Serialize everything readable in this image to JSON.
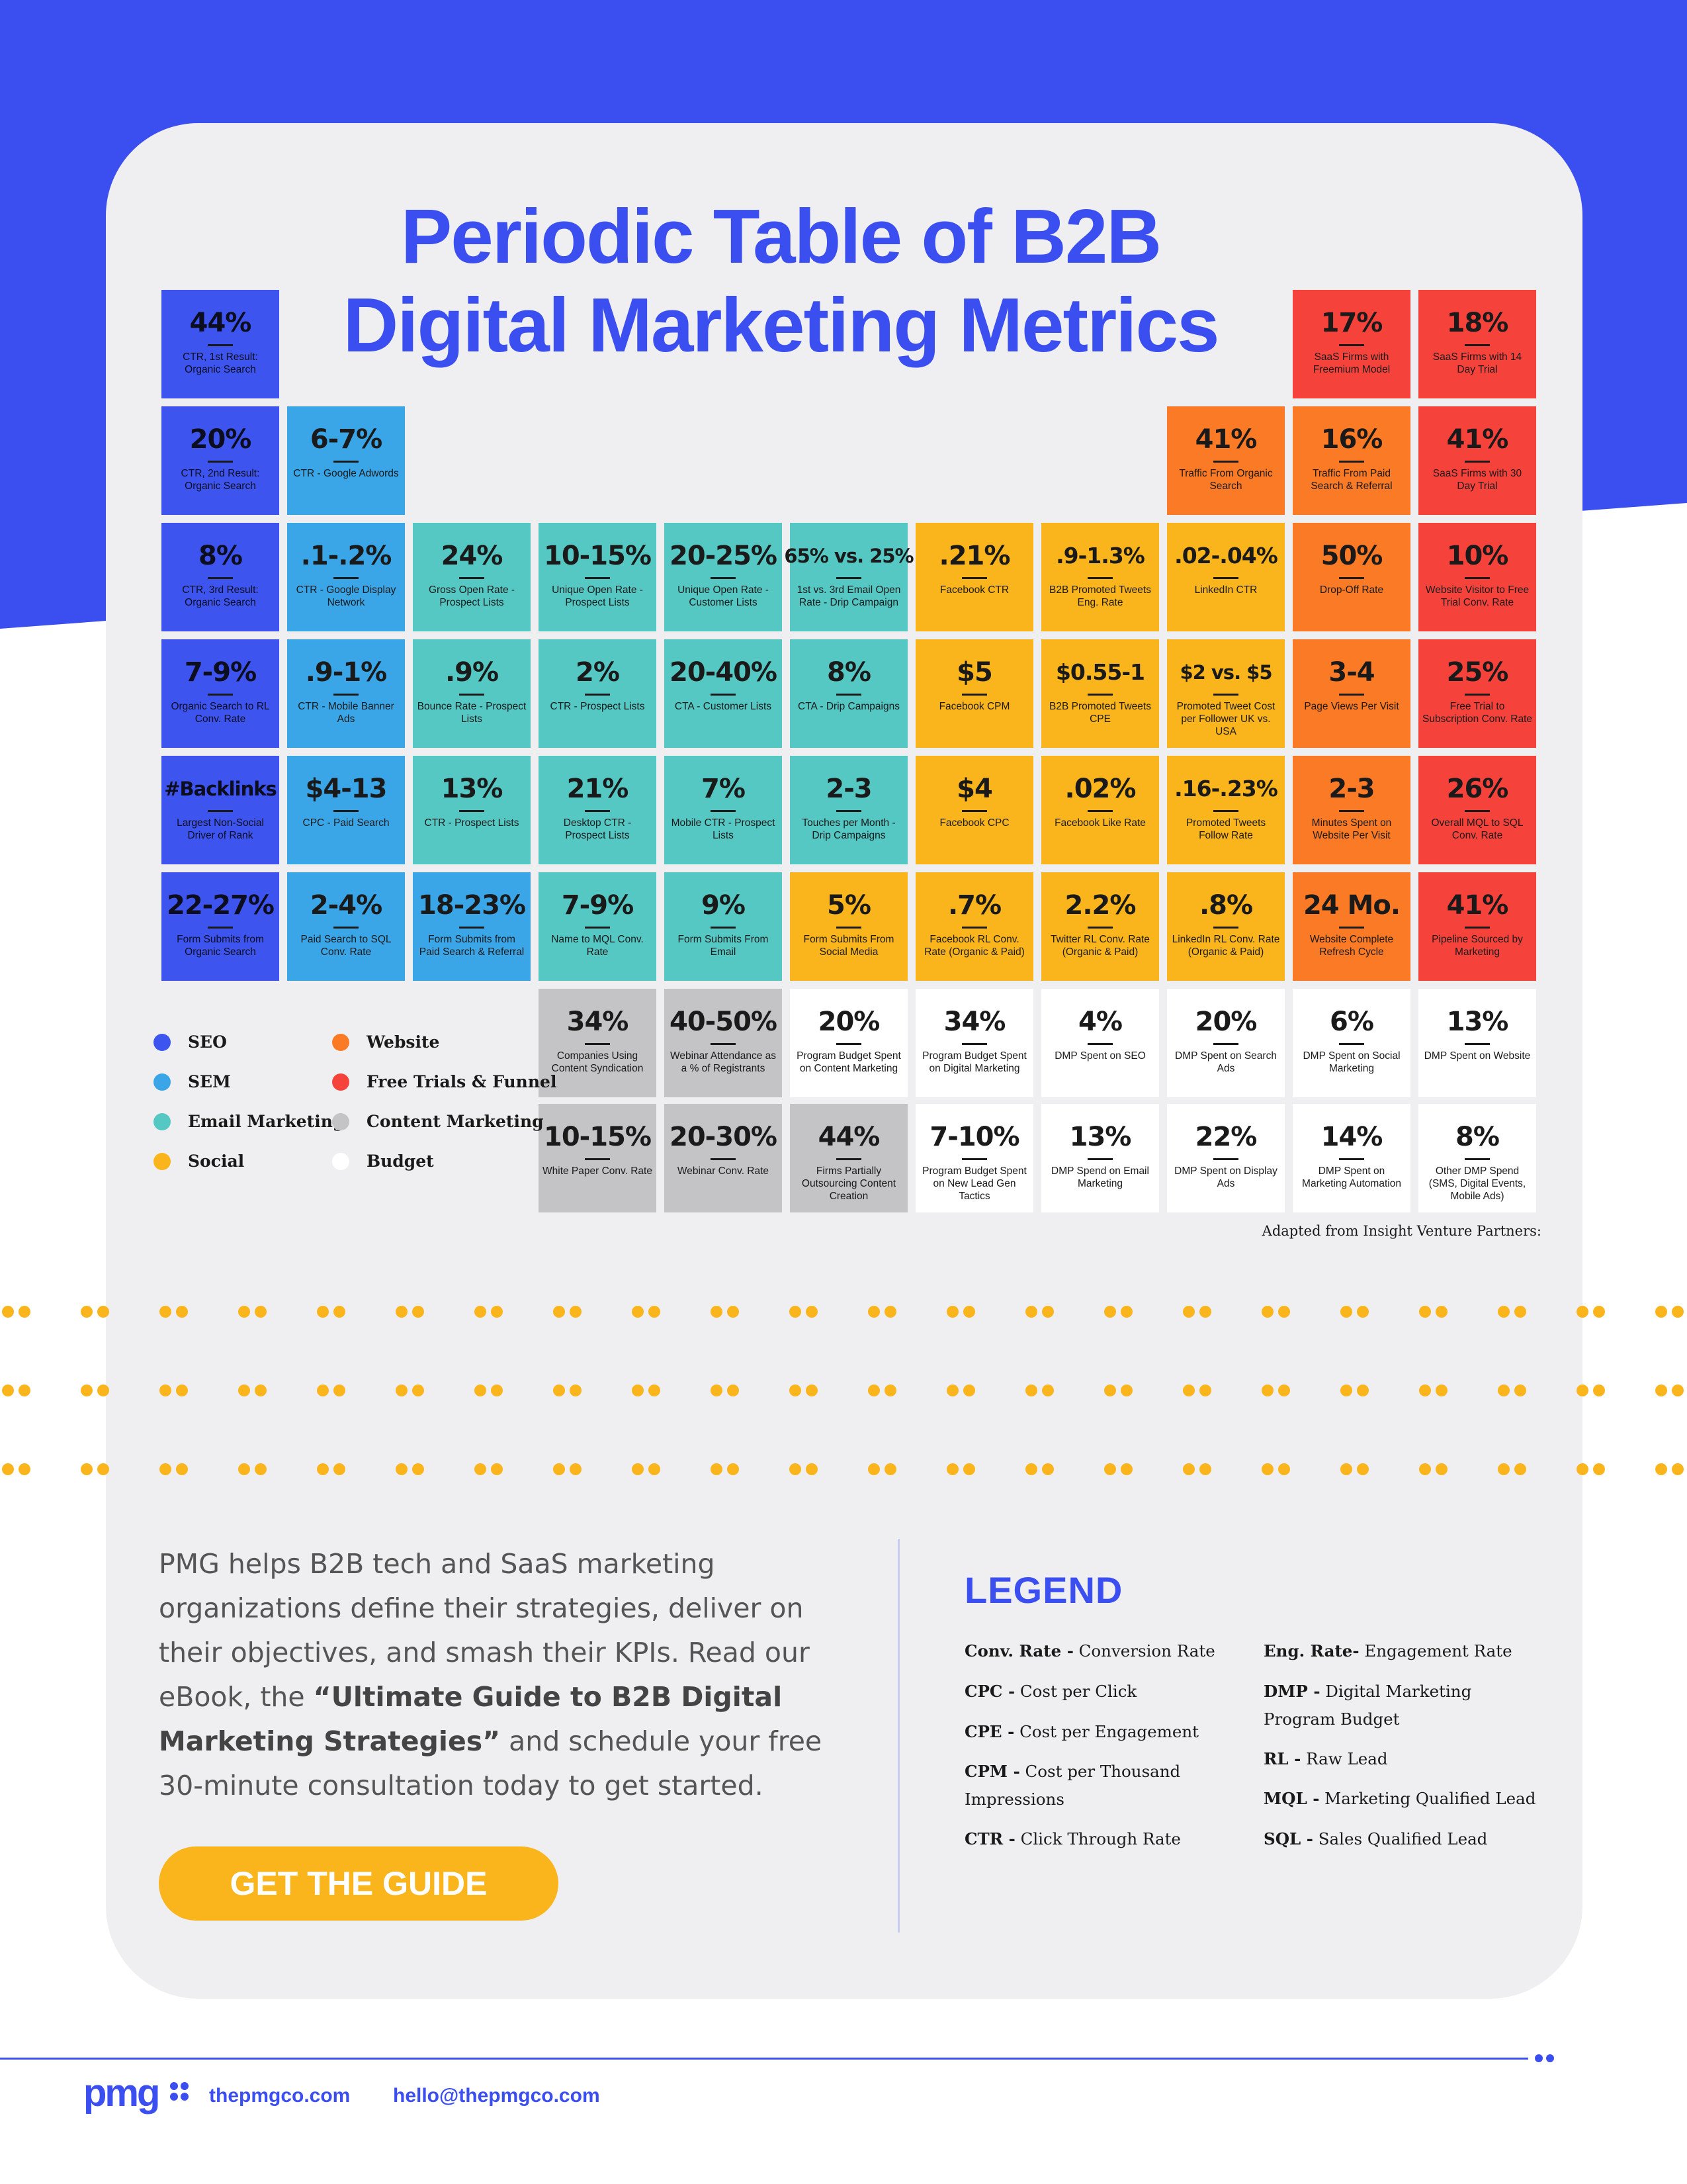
{
  "title": {
    "line1": "Periodic Table of B2B",
    "line2": "Digital Marketing Metrics"
  },
  "colors": {
    "seo": "#3d55ee",
    "sem": "#3aa6e8",
    "email": "#56c8c4",
    "social": "#fbb51c",
    "website": "#fb7a26",
    "trial": "#f5433c",
    "content": "#c4c4c6",
    "budget": "#ffffff",
    "brand_blue": "#3b4ef0"
  },
  "tiles": {
    "r1c1": {
      "value": "44%",
      "label": "CTR, 1st Result: Organic Search",
      "category": "seo"
    },
    "r1c10": {
      "value": "17%",
      "label": "SaaS Firms with Freemium Model",
      "category": "trial"
    },
    "r1c11": {
      "value": "18%",
      "label": "SaaS Firms with 14 Day Trial",
      "category": "trial"
    },
    "r2c1": {
      "value": "20%",
      "label": "CTR, 2nd Result: Organic Search",
      "category": "seo"
    },
    "r2c2": {
      "value": "6-7%",
      "label": "CTR - Google Adwords",
      "category": "sem"
    },
    "r2c9": {
      "value": "41%",
      "label": "Traffic From Organic Search",
      "category": "website"
    },
    "r2c10": {
      "value": "16%",
      "label": "Traffic From Paid Search & Referral",
      "category": "website"
    },
    "r2c11": {
      "value": "41%",
      "label": "SaaS Firms with 30 Day Trial",
      "category": "trial"
    },
    "r3c1": {
      "value": "8%",
      "label": "CTR, 3rd Result: Organic Search",
      "category": "seo"
    },
    "r3c2": {
      "value": ".1-.2%",
      "label": "CTR - Google Display Network",
      "category": "sem"
    },
    "r3c3": {
      "value": "24%",
      "label": "Gross Open Rate - Prospect Lists",
      "category": "email"
    },
    "r3c4": {
      "value": "10-15%",
      "label": "Unique Open Rate - Prospect Lists",
      "category": "email"
    },
    "r3c5": {
      "value": "20-25%",
      "label": "Unique Open Rate - Customer Lists",
      "category": "email"
    },
    "r3c6": {
      "value": "65% vs. 25%",
      "label": "1st vs. 3rd Email Open Rate - Drip Campaign",
      "category": "email"
    },
    "r3c7": {
      "value": ".21%",
      "label": "Facebook CTR",
      "category": "social"
    },
    "r3c8": {
      "value": ".9-1.3%",
      "label": "B2B Promoted Tweets Eng. Rate",
      "category": "social"
    },
    "r3c9": {
      "value": ".02-.04%",
      "label": "LinkedIn CTR",
      "category": "social"
    },
    "r3c10": {
      "value": "50%",
      "label": "Drop-Off Rate",
      "category": "website"
    },
    "r3c11": {
      "value": "10%",
      "label": "Website Visitor to Free Trial Conv. Rate",
      "category": "trial"
    },
    "r4c1": {
      "value": "7-9%",
      "label": "Organic Search to RL Conv. Rate",
      "category": "seo"
    },
    "r4c2": {
      "value": ".9-1%",
      "label": "CTR - Mobile Banner Ads",
      "category": "sem"
    },
    "r4c3": {
      "value": ".9%",
      "label": "Bounce Rate - Prospect Lists",
      "category": "email"
    },
    "r4c4": {
      "value": "2%",
      "label": "CTR - Prospect Lists",
      "category": "email"
    },
    "r4c5": {
      "value": "20-40%",
      "label": "CTA - Customer Lists",
      "category": "email"
    },
    "r4c6": {
      "value": "8%",
      "label": "CTA - Drip Campaigns",
      "category": "email"
    },
    "r4c7": {
      "value": "$5",
      "label": "Facebook CPM",
      "category": "social"
    },
    "r4c8": {
      "value": "$0.55-1",
      "label": "B2B Promoted Tweets CPE",
      "category": "social"
    },
    "r4c9": {
      "value": "$2 vs. $5",
      "label": "Promoted Tweet Cost per Follower UK vs. USA",
      "category": "social"
    },
    "r4c10": {
      "value": "3-4",
      "label": "Page Views Per Visit",
      "category": "website"
    },
    "r4c11": {
      "value": "25%",
      "label": "Free Trial to Subscription Conv. Rate",
      "category": "trial"
    },
    "r5c1": {
      "value": "#Backlinks",
      "label": "Largest Non-Social Driver of Rank",
      "category": "seo"
    },
    "r5c2": {
      "value": "$4-13",
      "label": "CPC - Paid Search",
      "category": "sem"
    },
    "r5c3": {
      "value": "13%",
      "label": "CTR - Prospect Lists",
      "category": "email"
    },
    "r5c4": {
      "value": "21%",
      "label": "Desktop CTR - Prospect Lists",
      "category": "email"
    },
    "r5c5": {
      "value": "7%",
      "label": "Mobile CTR - Prospect Lists",
      "category": "email"
    },
    "r5c6": {
      "value": "2-3",
      "label": "Touches per Month - Drip Campaigns",
      "category": "email"
    },
    "r5c7": {
      "value": "$4",
      "label": "Facebook CPC",
      "category": "social"
    },
    "r5c8": {
      "value": ".02%",
      "label": "Facebook Like Rate",
      "category": "social"
    },
    "r5c9": {
      "value": ".16-.23%",
      "label": "Promoted Tweets Follow Rate",
      "category": "social"
    },
    "r5c10": {
      "value": "2-3",
      "label": "Minutes Spent on Website Per Visit",
      "category": "website"
    },
    "r5c11": {
      "value": "26%",
      "label": "Overall MQL to SQL Conv. Rate",
      "category": "trial"
    },
    "r6c1": {
      "value": "22-27%",
      "label": "Form Submits from Organic Search",
      "category": "seo"
    },
    "r6c2": {
      "value": "2-4%",
      "label": "Paid Search to SQL Conv. Rate",
      "category": "sem"
    },
    "r6c3": {
      "value": "18-23%",
      "label": "Form Submits from Paid Search & Referral",
      "category": "sem"
    },
    "r6c4": {
      "value": "7-9%",
      "label": "Name to MQL Conv. Rate",
      "category": "email"
    },
    "r6c5": {
      "value": "9%",
      "label": "Form Submits From Email",
      "category": "email"
    },
    "r6c6": {
      "value": "5%",
      "label": "Form Submits From Social Media",
      "category": "social"
    },
    "r6c7": {
      "value": ".7%",
      "label": "Facebook RL Conv. Rate (Organic & Paid)",
      "category": "social"
    },
    "r6c8": {
      "value": "2.2%",
      "label": "Twitter RL Conv. Rate (Organic & Paid)",
      "category": "social"
    },
    "r6c9": {
      "value": ".8%",
      "label": "LinkedIn RL Conv. Rate (Organic & Paid)",
      "category": "social"
    },
    "r6c10": {
      "value": "24 Mo.",
      "label": "Website Complete Refresh Cycle",
      "category": "website"
    },
    "r6c11": {
      "value": "41%",
      "label": "Pipeline Sourced by Marketing",
      "category": "trial"
    },
    "r7c4": {
      "value": "34%",
      "label": "Companies Using Content Syndication",
      "category": "content"
    },
    "r7c5": {
      "value": "40-50%",
      "label": "Webinar Attendance as a % of Registrants",
      "category": "content"
    },
    "r7c6": {
      "value": "20%",
      "label": "Program Budget Spent on Content Marketing",
      "category": "budget"
    },
    "r7c7": {
      "value": "34%",
      "label": "Program Budget Spent on Digital Marketing",
      "category": "budget"
    },
    "r7c8": {
      "value": "4%",
      "label": "DMP Spent on SEO",
      "category": "budget"
    },
    "r7c9": {
      "value": "20%",
      "label": "DMP Spent on Search Ads",
      "category": "budget"
    },
    "r7c10": {
      "value": "6%",
      "label": "DMP Spent on Social Marketing",
      "category": "budget"
    },
    "r7c11": {
      "value": "13%",
      "label": "DMP Spent on Website",
      "category": "budget"
    },
    "r8c4": {
      "value": "10-15%",
      "label": "White Paper Conv. Rate",
      "category": "content"
    },
    "r8c5": {
      "value": "20-30%",
      "label": "Webinar Conv. Rate",
      "category": "content"
    },
    "r8c6": {
      "value": "44%",
      "label": "Firms Partially Outsourcing Content Creation",
      "category": "content"
    },
    "r8c7": {
      "value": "7-10%",
      "label": "Program Budget Spent on New Lead Gen Tactics",
      "category": "budget"
    },
    "r8c8": {
      "value": "13%",
      "label": "DMP Spend on Email Marketing",
      "category": "budget"
    },
    "r8c9": {
      "value": "22%",
      "label": "DMP Spent on Display Ads",
      "category": "budget"
    },
    "r8c10": {
      "value": "14%",
      "label": "DMP Spent on Marketing Automation",
      "category": "budget"
    },
    "r8c11": {
      "value": "8%",
      "label": "Other DMP Spend (SMS, Digital Events, Mobile Ads)",
      "category": "budget"
    }
  },
  "category_legend": {
    "seo": "SEO",
    "sem": "SEM",
    "email": "Email Marketing",
    "social": "Social",
    "website": "Website",
    "trial": "Free Trials & Funnel",
    "content": "Content Marketing",
    "budget": "Budget"
  },
  "adapted_note": "Adapted from Insight Venture Partners:",
  "promo": {
    "text1": "PMG helps B2B tech and SaaS marketing organizations define their strategies, deliver on their objectives, and smash their KPIs. Read our eBook, the ",
    "bold": "“Ultimate Guide to B2B Digital Marketing Strategies”",
    "text2": " and schedule your free 30-minute consultation today to get started.",
    "cta": "GET THE GUIDE"
  },
  "legend": {
    "title": "LEGEND",
    "conv_abbr": "Conv. Rate -",
    "conv_def": " Conversion Rate",
    "cpc_abbr": "CPC -",
    "cpc_def": " Cost per Click",
    "cpe_abbr": "CPE -",
    "cpe_def": " Cost per Engagement",
    "cpm_abbr": "CPM -",
    "cpm_def": " Cost per Thousand Impressions",
    "ctr_abbr": "CTR -",
    "ctr_def": " Click Through Rate",
    "eng_abbr": "Eng. Rate-",
    "eng_def": " Engagement Rate",
    "dmp_abbr": "DMP -",
    "dmp_def": " Digital Marketing Program Budget",
    "rl_abbr": "RL -",
    "rl_def": " Raw Lead",
    "mql_abbr": "MQL -",
    "mql_def": " Marketing Qualified Lead",
    "sql_abbr": "SQL -",
    "sql_def": " Sales Qualified Lead"
  },
  "footer": {
    "website": "thepmgco.com",
    "email": "hello@thepmgco.com"
  }
}
